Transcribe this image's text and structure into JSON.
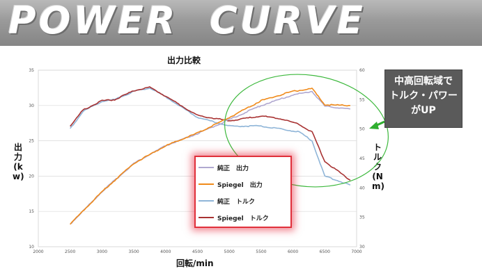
{
  "banner": {
    "title": "POWER  CURVE"
  },
  "callout": {
    "lines": [
      "中高回転域で",
      "トルク・パワー",
      "がUP"
    ]
  },
  "chart_data": {
    "type": "line",
    "title": "出力比較",
    "xlabel": "回転/min",
    "ylabel_left": "出力(kw)",
    "ylabel_right": "トルク(Nm)",
    "xlim": [
      2000,
      7000
    ],
    "ylim_left": [
      10,
      35
    ],
    "ylim_right": [
      30,
      60
    ],
    "x_ticks": [
      2000,
      2500,
      3000,
      3500,
      4000,
      4500,
      5000,
      5500,
      6000,
      6500,
      7000
    ],
    "y_left_ticks": [
      10,
      15,
      20,
      25,
      30,
      35
    ],
    "y_right_ticks": [
      30,
      35,
      40,
      45,
      50,
      55,
      60
    ],
    "grid": true,
    "series": [
      {
        "name": "純正　出力",
        "axis": "left",
        "color": "#b0a8d0",
        "x": [
          2500,
          3000,
          3500,
          4000,
          4500,
          5000,
          5500,
          6000,
          6300,
          6500,
          6900
        ],
        "y": [
          13.2,
          17.8,
          21.8,
          24.3,
          26.0,
          28.0,
          30.0,
          31.5,
          32.0,
          29.9,
          29.5
        ]
      },
      {
        "name": "Spiegel　出力",
        "axis": "left",
        "color": "#f08a1a",
        "x": [
          2500,
          3000,
          3500,
          4000,
          4500,
          5000,
          5500,
          6000,
          6300,
          6500,
          6900
        ],
        "y": [
          13.2,
          17.8,
          21.8,
          24.3,
          26.1,
          28.3,
          30.7,
          32.0,
          32.4,
          30.1,
          30.0
        ]
      },
      {
        "name": "純正　トルク",
        "axis": "right",
        "color": "#8fb5d8",
        "x": [
          2500,
          2700,
          3000,
          3200,
          3500,
          3750,
          4000,
          4500,
          5000,
          5500,
          5800,
          6100,
          6300,
          6500,
          6900
        ],
        "y": [
          50.0,
          53.0,
          54.7,
          55.0,
          56.4,
          57.0,
          55.5,
          52.0,
          50.5,
          50.5,
          50.0,
          49.5,
          48.0,
          42.0,
          40.5
        ]
      },
      {
        "name": "Spiegel　トルク",
        "axis": "right",
        "color": "#a83232",
        "x": [
          2500,
          2700,
          3000,
          3200,
          3500,
          3750,
          4000,
          4500,
          5000,
          5500,
          5800,
          6100,
          6300,
          6500,
          6900
        ],
        "y": [
          50.5,
          53.2,
          54.8,
          55.0,
          56.5,
          57.1,
          55.6,
          52.3,
          51.4,
          52.2,
          51.8,
          50.8,
          49.5,
          44.5,
          41.3
        ]
      }
    ]
  }
}
